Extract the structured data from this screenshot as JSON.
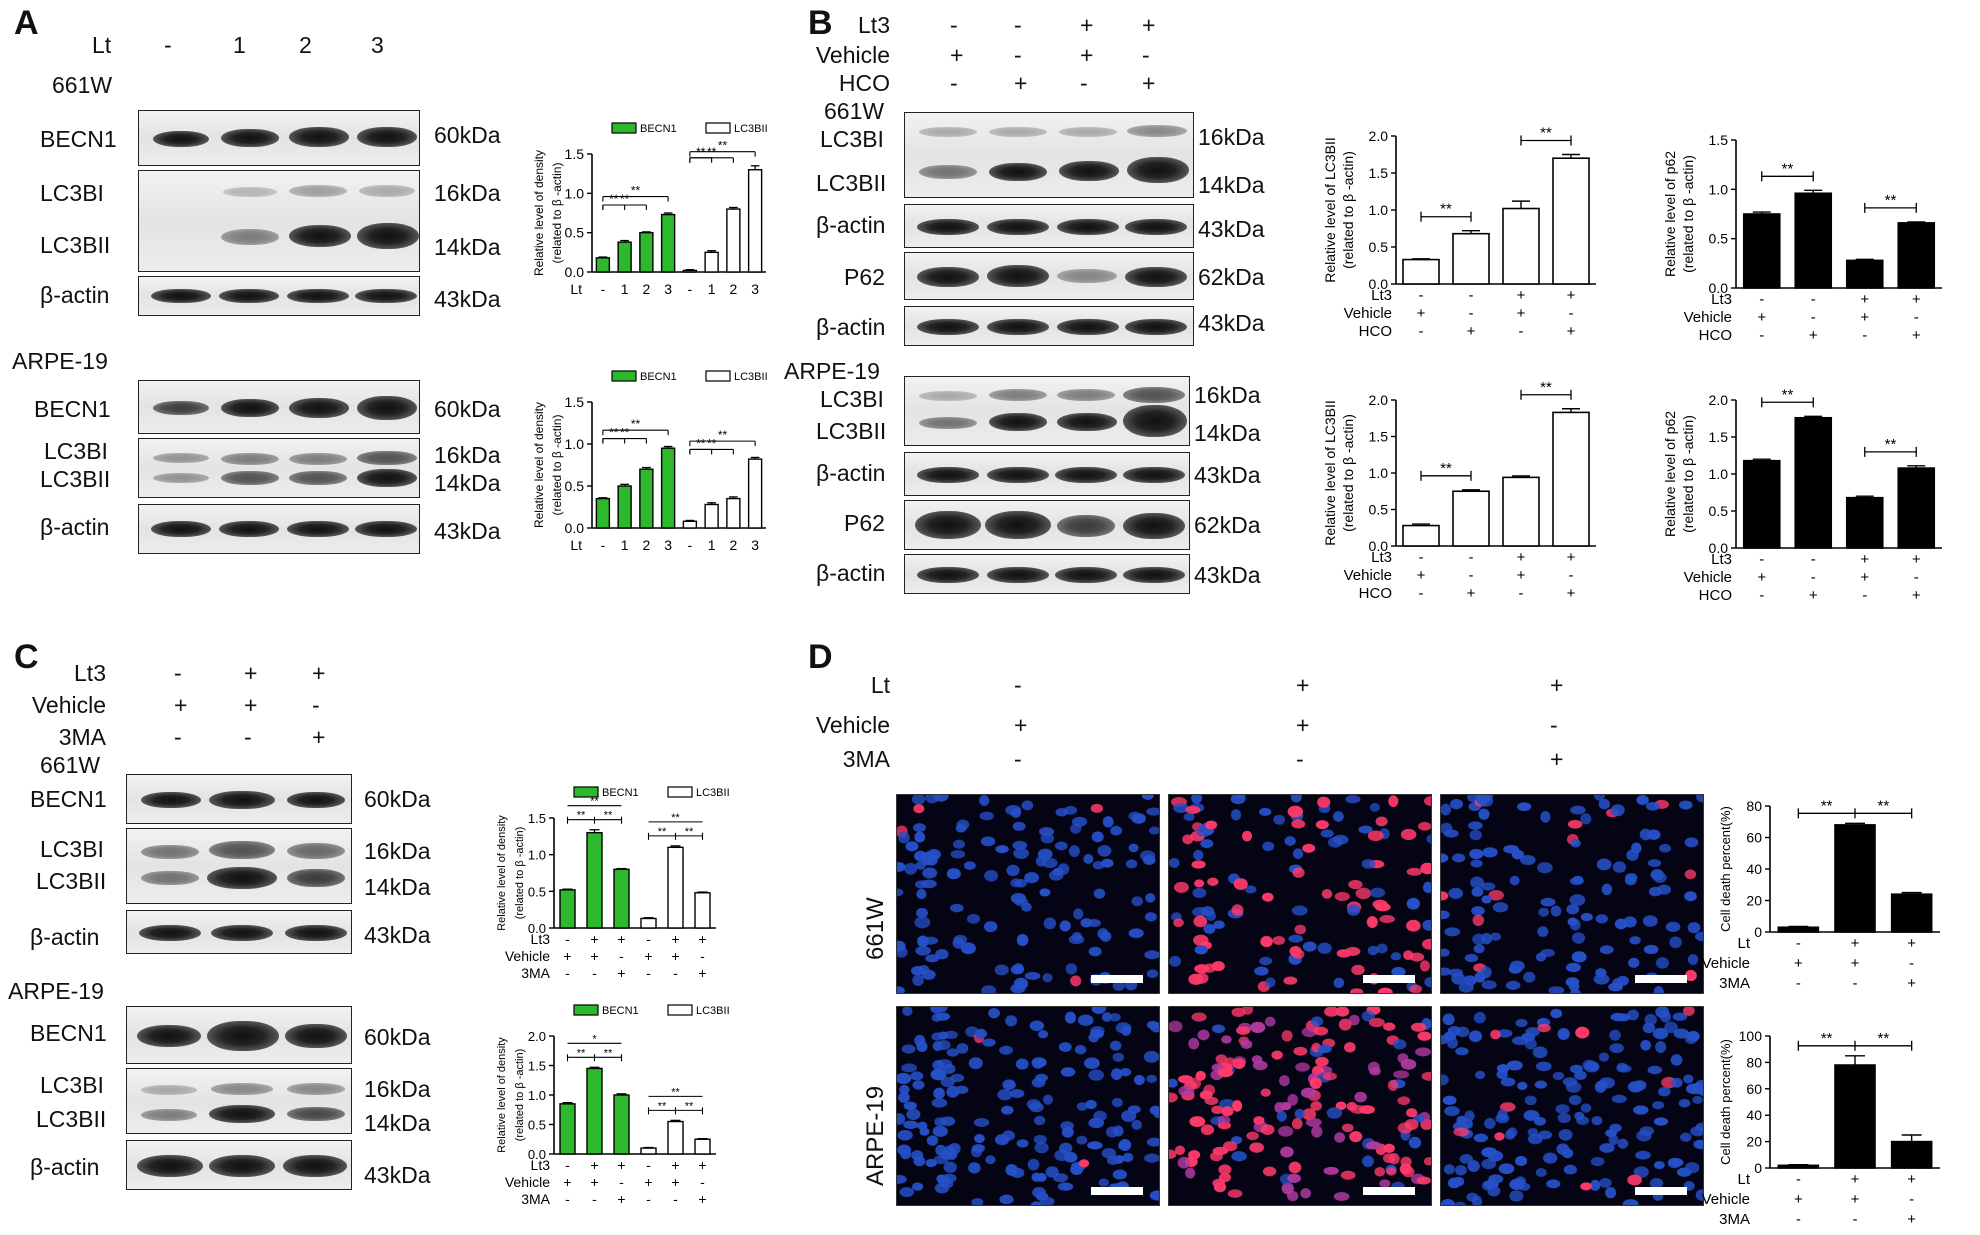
{
  "panels": {
    "A": "A",
    "B": "B",
    "C": "C",
    "D": "D"
  },
  "panelA": {
    "lt_label": "Lt",
    "lt_values": [
      "-",
      "1",
      "2",
      "3"
    ],
    "cell_661w": "661W",
    "cell_arpe": "ARPE-19",
    "rows_661w": [
      "BECN1",
      "LC3BI",
      "LC3BII",
      "β-actin"
    ],
    "rows_arpe": [
      "BECN1",
      "LC3BI",
      "LC3BII",
      "β-actin"
    ],
    "kda_661w": [
      "60kDa",
      "16kDa",
      "14kDa",
      "43kDa"
    ],
    "kda_arpe": [
      "60kDa",
      "16kDa",
      "14kDa",
      "43kDa"
    ]
  },
  "panelB": {
    "treat_rows": [
      {
        "label": "Lt3",
        "values": [
          "-",
          "-",
          "+",
          "+"
        ]
      },
      {
        "label": "Vehicle",
        "values": [
          "+",
          "-",
          "+",
          "-"
        ]
      },
      {
        "label": "HCO",
        "values": [
          "-",
          "+",
          "-",
          "+"
        ]
      }
    ],
    "cell_661w": "661W",
    "cell_arpe": "ARPE-19",
    "rows_661w": [
      "LC3BI",
      "LC3BII",
      "β-actin",
      "P62",
      "β-actin"
    ],
    "rows_arpe": [
      "LC3BI",
      "LC3BII",
      "β-actin",
      "P62",
      "β-actin"
    ],
    "kda_661w": [
      "16kDa",
      "14kDa",
      "43kDa",
      "62kDa",
      "43kDa"
    ],
    "kda_arpe": [
      "16kDa",
      "14kDa",
      "43kDa",
      "62kDa",
      "43kDa"
    ]
  },
  "panelC": {
    "treat_rows": [
      {
        "label": "Lt3",
        "values": [
          "-",
          "+",
          "+"
        ]
      },
      {
        "label": "Vehicle",
        "values": [
          "+",
          "+",
          "-"
        ]
      },
      {
        "label": "3MA",
        "values": [
          "-",
          "-",
          "+"
        ]
      }
    ],
    "cell_661w": "661W",
    "cell_arpe": "ARPE-19",
    "rows_661w": [
      "BECN1",
      "LC3BI",
      "LC3BII",
      "β-actin"
    ],
    "rows_arpe": [
      "BECN1",
      "LC3BI",
      "LC3BII",
      "β-actin"
    ],
    "kda_661w": [
      "60kDa",
      "16kDa",
      "14kDa",
      "43kDa"
    ],
    "kda_arpe": [
      "60kDa",
      "16kDa",
      "14kDa",
      "43kDa"
    ]
  },
  "panelD": {
    "treat_rows": [
      {
        "label": "Lt",
        "values": [
          "-",
          "+",
          "+"
        ]
      },
      {
        "label": "Vehicle",
        "values": [
          "+",
          "+",
          "-"
        ]
      },
      {
        "label": "3MA",
        "values": [
          "-",
          "-",
          "+"
        ]
      }
    ],
    "row_labels": [
      "661W",
      "ARPE-19"
    ]
  },
  "chart_data": [
    {
      "id": "A1",
      "type": "bar",
      "ylabel": "Relative level of density (related to β -actin)",
      "legend": [
        "BECN1",
        "LC3BII"
      ],
      "legend_placement": "top",
      "ylim": [
        0,
        1.5
      ],
      "yticks": [
        "0.0",
        "0.5",
        "1.0",
        "1.5"
      ],
      "x_prefix": "Lt",
      "categories": [
        "-",
        "1",
        "2",
        "3"
      ],
      "series": [
        {
          "name": "BECN1",
          "color": "#2db82d",
          "values": [
            0.18,
            0.38,
            0.5,
            0.73
          ],
          "errors": [
            0.01,
            0.02,
            0.01,
            0.02
          ]
        },
        {
          "name": "LC3BII",
          "color": "#ffffff",
          "values": [
            0.02,
            0.25,
            0.8,
            1.3
          ],
          "errors": [
            0.01,
            0.02,
            0.02,
            0.05
          ]
        }
      ],
      "sig": [
        "**",
        "**",
        "**",
        "**",
        "**",
        "**"
      ]
    },
    {
      "id": "A2",
      "type": "bar",
      "ylabel": "Relative level of density (related to β -actin)",
      "legend": [
        "BECN1",
        "LC3BII"
      ],
      "legend_placement": "top",
      "ylim": [
        0,
        1.5
      ],
      "yticks": [
        "0.0",
        "0.5",
        "1.0",
        "1.5"
      ],
      "x_prefix": "Lt",
      "categories": [
        "-",
        "1",
        "2",
        "3"
      ],
      "series": [
        {
          "name": "BECN1",
          "color": "#2db82d",
          "values": [
            0.35,
            0.5,
            0.7,
            0.95
          ],
          "errors": [
            0.01,
            0.02,
            0.02,
            0.02
          ]
        },
        {
          "name": "LC3BII",
          "color": "#ffffff",
          "values": [
            0.08,
            0.28,
            0.35,
            0.82
          ],
          "errors": [
            0.01,
            0.02,
            0.02,
            0.02
          ]
        }
      ],
      "sig": [
        "**",
        "**",
        "**",
        "**",
        "**",
        "**"
      ]
    },
    {
      "id": "B1",
      "type": "bar",
      "ylabel": "Relative level of LC3BII (related to β -actin)",
      "ylim": [
        0,
        2.0
      ],
      "yticks": [
        "0.0",
        "0.5",
        "1.0",
        "1.5",
        "2.0"
      ],
      "color": "#ffffff",
      "values": [
        0.33,
        0.68,
        1.02,
        1.7
      ],
      "errors": [
        0.01,
        0.04,
        0.1,
        0.05
      ],
      "xrows": [
        {
          "label": "Lt3",
          "values": [
            "-",
            "-",
            "+",
            "+"
          ]
        },
        {
          "label": "Vehicle",
          "values": [
            "+",
            "-",
            "+",
            "-"
          ]
        },
        {
          "label": "HCO",
          "values": [
            "-",
            "+",
            "-",
            "+"
          ]
        }
      ],
      "sig": [
        "**",
        "**"
      ]
    },
    {
      "id": "B2",
      "type": "bar",
      "ylabel": "Relative level of p62 (related to β -actin)",
      "ylim": [
        0,
        1.5
      ],
      "yticks": [
        "0.0",
        "0.5",
        "1.0",
        "1.5"
      ],
      "color": "#000000",
      "values": [
        0.75,
        0.96,
        0.28,
        0.66
      ],
      "errors": [
        0.02,
        0.03,
        0.01,
        0.01
      ],
      "xrows": [
        {
          "label": "Lt3",
          "values": [
            "-",
            "-",
            "+",
            "+"
          ]
        },
        {
          "label": "Vehicle",
          "values": [
            "+",
            "-",
            "+",
            "-"
          ]
        },
        {
          "label": "HCO",
          "values": [
            "-",
            "+",
            "-",
            "+"
          ]
        }
      ],
      "sig": [
        "**",
        "**"
      ]
    },
    {
      "id": "B3",
      "type": "bar",
      "ylabel": "Relative level of LC3BII (related to β -actin)",
      "ylim": [
        0,
        2.0
      ],
      "yticks": [
        "0.0",
        "0.5",
        "1.0",
        "1.5",
        "2.0"
      ],
      "color": "#ffffff",
      "values": [
        0.28,
        0.75,
        0.94,
        1.83
      ],
      "errors": [
        0.02,
        0.02,
        0.02,
        0.05
      ],
      "xrows": [
        {
          "label": "Lt3",
          "values": [
            "-",
            "-",
            "+",
            "+"
          ]
        },
        {
          "label": "Vehicle",
          "values": [
            "+",
            "-",
            "+",
            "-"
          ]
        },
        {
          "label": "HCO",
          "values": [
            "-",
            "+",
            "-",
            "+"
          ]
        }
      ],
      "sig": [
        "**",
        "**"
      ]
    },
    {
      "id": "B4",
      "type": "bar",
      "ylabel": "Relative level of p62 (related to β -actin)",
      "ylim": [
        0,
        2.0
      ],
      "yticks": [
        "0.0",
        "0.5",
        "1.0",
        "1.5",
        "2.0"
      ],
      "color": "#000000",
      "values": [
        1.18,
        1.76,
        0.68,
        1.08
      ],
      "errors": [
        0.02,
        0.02,
        0.02,
        0.03
      ],
      "xrows": [
        {
          "label": "Lt3",
          "values": [
            "-",
            "-",
            "+",
            "+"
          ]
        },
        {
          "label": "Vehicle",
          "values": [
            "+",
            "-",
            "+",
            "-"
          ]
        },
        {
          "label": "HCO",
          "values": [
            "-",
            "+",
            "-",
            "+"
          ]
        }
      ],
      "sig": [
        "**",
        "**"
      ]
    },
    {
      "id": "C1",
      "type": "bar",
      "ylabel": "Relative level of density (related to β -actin)",
      "legend": [
        "BECN1",
        "LC3BII"
      ],
      "legend_placement": "top",
      "ylim": [
        0,
        1.5
      ],
      "yticks": [
        "0.0",
        "0.5",
        "1.0",
        "1.5"
      ],
      "series": [
        {
          "name": "BECN1",
          "color": "#2db82d",
          "values": [
            0.52,
            1.3,
            0.8
          ],
          "errors": [
            0.01,
            0.04,
            0.01
          ]
        },
        {
          "name": "LC3BII",
          "color": "#ffffff",
          "values": [
            0.13,
            1.1,
            0.48
          ],
          "errors": [
            0.01,
            0.02,
            0.01
          ]
        }
      ],
      "xrows": [
        {
          "label": "Lt3",
          "values": [
            "-",
            "+",
            "+"
          ]
        },
        {
          "label": "Vehicle",
          "values": [
            "+",
            "+",
            "-"
          ]
        },
        {
          "label": "3MA",
          "values": [
            "-",
            "-",
            "+"
          ]
        }
      ],
      "sig": [
        "**",
        "**",
        "**",
        "**",
        "**",
        "**"
      ]
    },
    {
      "id": "C2",
      "type": "bar",
      "ylabel": "Relative level of density (related to β -actin)",
      "legend": [
        "BECN1",
        "LC3BII"
      ],
      "legend_placement": "top",
      "ylim": [
        0,
        2.0
      ],
      "yticks": [
        "0.0",
        "0.5",
        "1.0",
        "1.5",
        "2.0"
      ],
      "series": [
        {
          "name": "BECN1",
          "color": "#2db82d",
          "values": [
            0.85,
            1.45,
            1.0
          ],
          "errors": [
            0.02,
            0.02,
            0.02
          ]
        },
        {
          "name": "LC3BII",
          "color": "#ffffff",
          "values": [
            0.1,
            0.55,
            0.25
          ],
          "errors": [
            0.01,
            0.02,
            0.01
          ]
        }
      ],
      "xrows": [
        {
          "label": "Lt3",
          "values": [
            "-",
            "+",
            "+"
          ]
        },
        {
          "label": "Vehicle",
          "values": [
            "+",
            "+",
            "-"
          ]
        },
        {
          "label": "3MA",
          "values": [
            "-",
            "-",
            "+"
          ]
        }
      ],
      "sig": [
        "*",
        "**",
        "**",
        "**",
        "**",
        "**"
      ]
    },
    {
      "id": "D1",
      "type": "bar",
      "ylabel": "Cell death percent(%)",
      "ylim": [
        0,
        80
      ],
      "yticks": [
        "0",
        "20",
        "40",
        "60",
        "80"
      ],
      "color": "#000000",
      "values": [
        3,
        68,
        24
      ],
      "errors": [
        0.5,
        1,
        1
      ],
      "xrows": [
        {
          "label": "Lt",
          "values": [
            "-",
            "+",
            "+"
          ]
        },
        {
          "label": "Vehicle",
          "values": [
            "+",
            "+",
            "-"
          ]
        },
        {
          "label": "3MA",
          "values": [
            "-",
            "-",
            "+"
          ]
        }
      ],
      "sig": [
        "**",
        "**"
      ]
    },
    {
      "id": "D2",
      "type": "bar",
      "ylabel": "Cell death percent(%)",
      "ylim": [
        0,
        100
      ],
      "yticks": [
        "0",
        "20",
        "40",
        "60",
        "80",
        "100"
      ],
      "color": "#000000",
      "values": [
        2,
        78,
        20
      ],
      "errors": [
        0.5,
        7,
        5
      ],
      "xrows": [
        {
          "label": "Lt",
          "values": [
            "-",
            "+",
            "+"
          ]
        },
        {
          "label": "Vehicle",
          "values": [
            "+",
            "+",
            "-"
          ]
        },
        {
          "label": "3MA",
          "values": [
            "-",
            "-",
            "+"
          ]
        }
      ],
      "sig": [
        "**",
        "**"
      ]
    }
  ]
}
